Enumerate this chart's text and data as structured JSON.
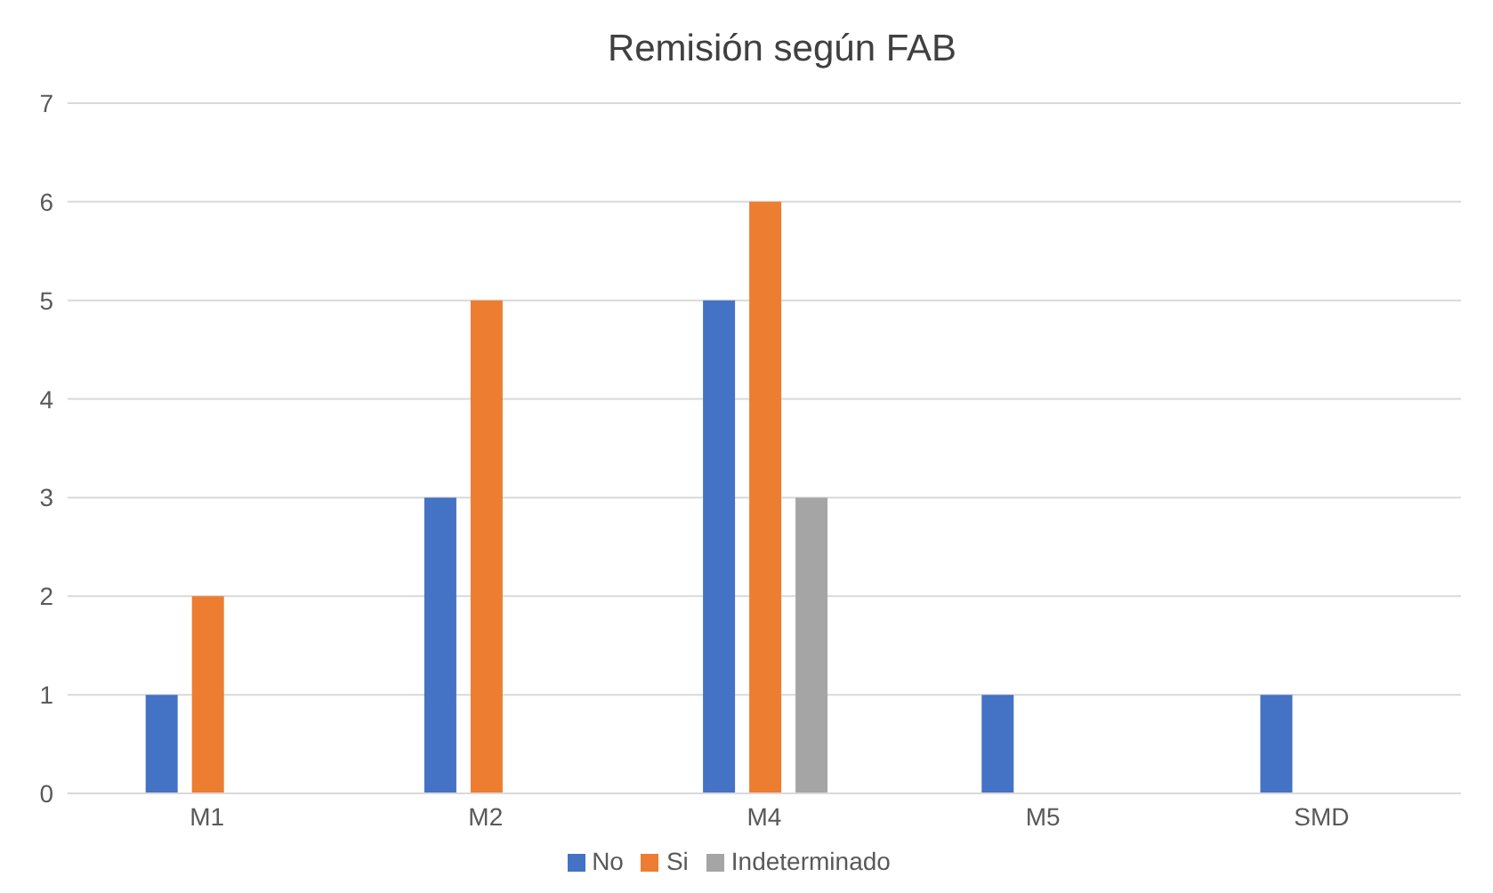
{
  "chart_data": {
    "type": "bar",
    "title": "Remisión según FAB",
    "categories": [
      "M1",
      "M2",
      "M4",
      "M5",
      "SMD"
    ],
    "series": [
      {
        "name": "No",
        "color": "#4472c4",
        "values": [
          1,
          3,
          5,
          1,
          1
        ]
      },
      {
        "name": "Si",
        "color": "#ed7d31",
        "values": [
          2,
          5,
          6,
          null,
          null
        ]
      },
      {
        "name": "Indeterminado",
        "color": "#a5a5a5",
        "values": [
          null,
          null,
          3,
          null,
          null
        ]
      }
    ],
    "ylim": [
      0,
      7
    ],
    "yticks": [
      0,
      1,
      2,
      3,
      4,
      5,
      6,
      7
    ],
    "grid": "y",
    "legend": "bottom"
  }
}
